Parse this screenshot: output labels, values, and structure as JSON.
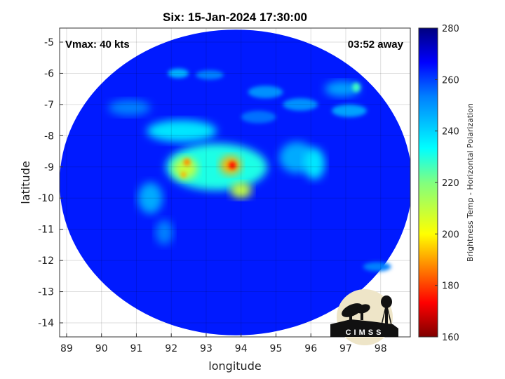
{
  "chart_data": {
    "type": "heatmap",
    "title": "Six: 15-Jan-2024 17:30:00",
    "xlabel": "longitude",
    "ylabel": "latitude",
    "xlim": [
      88.8,
      98.85
    ],
    "ylim": [
      -14.45,
      -4.55
    ],
    "xticks": [
      89,
      90,
      91,
      92,
      93,
      94,
      95,
      96,
      97,
      98
    ],
    "yticks": [
      -5,
      -6,
      -7,
      -8,
      -9,
      -10,
      -11,
      -12,
      -13,
      -14
    ],
    "grid": true,
    "annotations": {
      "vmax": "Vmax: 40 kts",
      "time_offset": "03:52 away"
    },
    "colorbar": {
      "label": "Brightness Temp - Horizontal Polarization",
      "range": [
        160,
        280
      ],
      "ticks": [
        280,
        260,
        240,
        220,
        200,
        180,
        160
      ],
      "colormap": [
        "#7f0000",
        "#ff0000",
        "#ff8000",
        "#ffff00",
        "#80ff80",
        "#00ffff",
        "#0080ff",
        "#0000ff",
        "#00007f"
      ]
    },
    "swath": {
      "center_lon": 93.85,
      "center_lat": -9.5,
      "radius_lon": 5.05,
      "radius_lat": 4.9,
      "background_temp": 262
    },
    "features": [
      {
        "lon": 93.3,
        "lat": -9.0,
        "rlon": 1.45,
        "rlat": 0.75,
        "temp": 232
      },
      {
        "lon": 92.3,
        "lat": -7.85,
        "rlon": 1.0,
        "rlat": 0.35,
        "temp": 238
      },
      {
        "lon": 92.4,
        "lat": -9.05,
        "rlon": 0.35,
        "rlat": 0.35,
        "temp": 212
      },
      {
        "lon": 93.7,
        "lat": -8.95,
        "rlon": 0.3,
        "rlat": 0.3,
        "temp": 196
      },
      {
        "lon": 93.75,
        "lat": -8.95,
        "rlon": 0.1,
        "rlat": 0.12,
        "temp": 175
      },
      {
        "lon": 92.45,
        "lat": -8.85,
        "rlon": 0.1,
        "rlat": 0.12,
        "temp": 192
      },
      {
        "lon": 92.35,
        "lat": -9.25,
        "rlon": 0.08,
        "rlat": 0.1,
        "temp": 196
      },
      {
        "lon": 94.0,
        "lat": -9.75,
        "rlon": 0.3,
        "rlat": 0.25,
        "temp": 212
      },
      {
        "lon": 91.4,
        "lat": -10.0,
        "rlon": 0.35,
        "rlat": 0.5,
        "temp": 245
      },
      {
        "lon": 91.8,
        "lat": -11.1,
        "rlon": 0.25,
        "rlat": 0.4,
        "temp": 250
      },
      {
        "lon": 95.6,
        "lat": -8.7,
        "rlon": 0.5,
        "rlat": 0.5,
        "temp": 245
      },
      {
        "lon": 96.1,
        "lat": -8.9,
        "rlon": 0.3,
        "rlat": 0.5,
        "temp": 238
      },
      {
        "lon": 92.2,
        "lat": -6.0,
        "rlon": 0.3,
        "rlat": 0.15,
        "temp": 244
      },
      {
        "lon": 94.7,
        "lat": -6.6,
        "rlon": 0.5,
        "rlat": 0.2,
        "temp": 248
      },
      {
        "lon": 95.7,
        "lat": -7.0,
        "rlon": 0.5,
        "rlat": 0.2,
        "temp": 248
      },
      {
        "lon": 96.9,
        "lat": -6.5,
        "rlon": 0.5,
        "rlat": 0.25,
        "temp": 246
      },
      {
        "lon": 97.3,
        "lat": -6.45,
        "rlon": 0.12,
        "rlat": 0.15,
        "temp": 228
      },
      {
        "lon": 97.1,
        "lat": -7.2,
        "rlon": 0.5,
        "rlat": 0.2,
        "temp": 246
      },
      {
        "lon": 90.8,
        "lat": -7.1,
        "rlon": 0.6,
        "rlat": 0.25,
        "temp": 250
      },
      {
        "lon": 93.1,
        "lat": -6.05,
        "rlon": 0.4,
        "rlat": 0.15,
        "temp": 250
      },
      {
        "lon": 94.5,
        "lat": -7.4,
        "rlon": 0.5,
        "rlat": 0.2,
        "temp": 252
      },
      {
        "lon": 97.9,
        "lat": -12.2,
        "rlon": 0.4,
        "rlat": 0.15,
        "temp": 250
      }
    ]
  },
  "logo": {
    "text": "CIMSS"
  }
}
